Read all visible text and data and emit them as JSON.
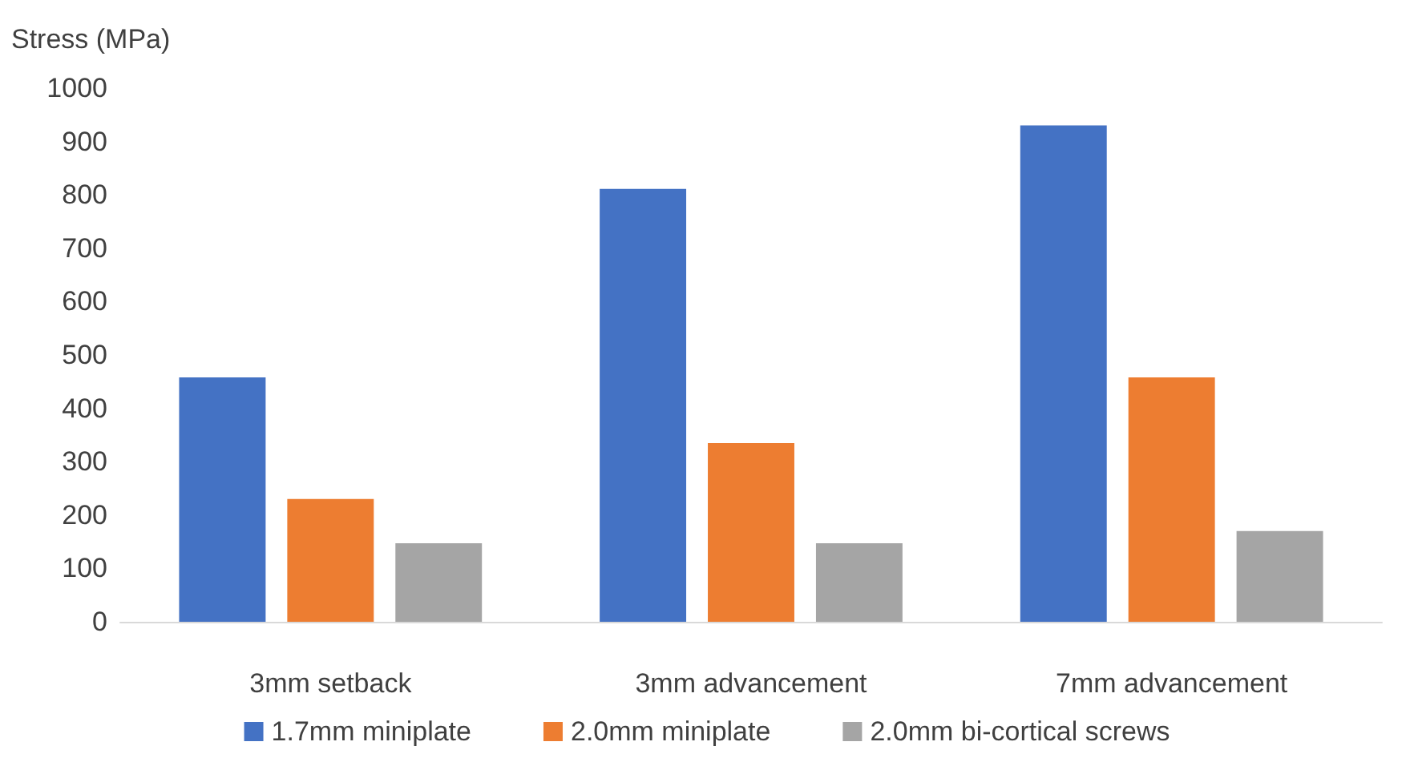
{
  "chart_data": {
    "type": "bar",
    "ylabel": "Stress (MPa)",
    "categories": [
      "3mm setback",
      "3mm advancement",
      "7mm advancement"
    ],
    "series": [
      {
        "name": "1.7mm miniplate",
        "color": "#4472c4",
        "values": [
          458,
          811,
          930
        ]
      },
      {
        "name": "2.0mm miniplate",
        "color": "#ed7d31",
        "values": [
          230,
          335,
          458
        ]
      },
      {
        "name": "2.0mm bi-cortical screws",
        "color": "#a5a5a5",
        "values": [
          147,
          147,
          170
        ]
      }
    ],
    "ylim": [
      0,
      1000
    ],
    "yticks": [
      0,
      100,
      200,
      300,
      400,
      500,
      600,
      700,
      800,
      900,
      1000
    ],
    "grid": false,
    "legend": "bottom"
  }
}
